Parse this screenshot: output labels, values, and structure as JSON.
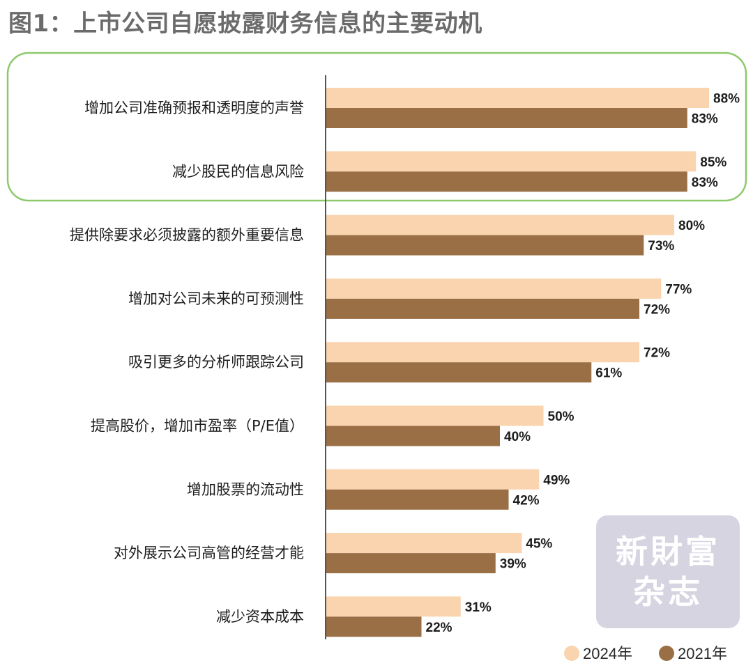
{
  "title": "图1：上市公司自愿披露财务信息的主要动机",
  "watermark": {
    "line1": "新財富",
    "line2": "杂志"
  },
  "colors": {
    "series_2024": "#f9d4ae",
    "series_2021": "#9a6f45",
    "highlight_border": "#8cc96b",
    "axis": "#555555"
  },
  "chart_data": {
    "type": "bar",
    "orientation": "horizontal",
    "categories": [
      "增加公司准确预报和透明度的声誉",
      "减少股民的信息风险",
      "提供除要求必须披露的额外重要信息",
      "增加对公司未来的可预测性",
      "吸引更多的分析师跟踪公司",
      "提高股价，增加市盈率（P/E值）",
      "增加股票的流动性",
      "对外展示公司高管的经营才能",
      "减少资本成本"
    ],
    "series": [
      {
        "name": "2024年",
        "values": [
          88,
          85,
          80,
          77,
          72,
          50,
          49,
          45,
          31
        ],
        "labels": [
          "88%",
          "85%",
          "80%",
          "77%",
          "72%",
          "50%",
          "49%",
          "45%",
          "31%"
        ]
      },
      {
        "name": "2021年",
        "values": [
          83,
          83,
          73,
          72,
          61,
          40,
          42,
          39,
          22
        ],
        "labels": [
          "83%",
          "83%",
          "73%",
          "72%",
          "61%",
          "40%",
          "42%",
          "39%",
          "22%"
        ]
      }
    ],
    "value_unit": "%",
    "xlim": [
      0,
      100
    ],
    "highlighted_categories": [
      0,
      1
    ],
    "legend_position": "bottom-right",
    "grid": false
  }
}
